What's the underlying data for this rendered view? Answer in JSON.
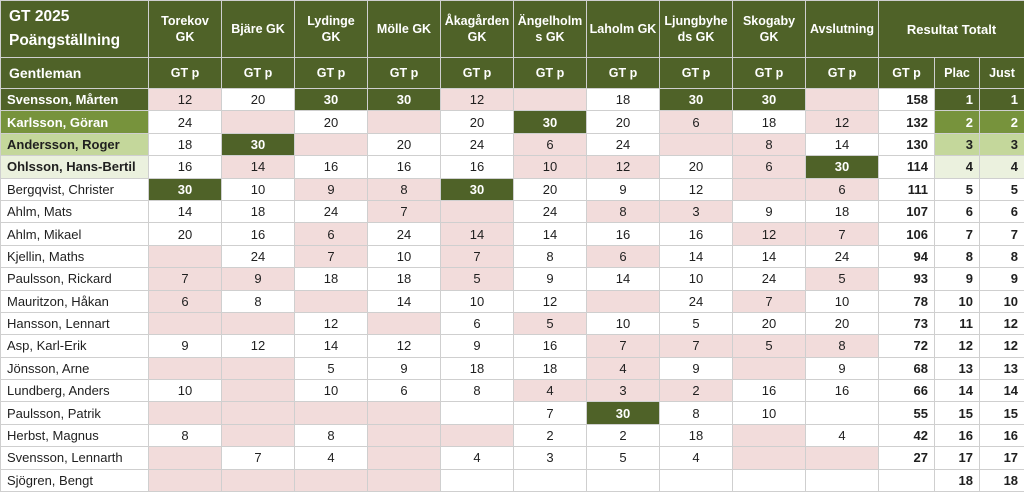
{
  "header": {
    "title_line1": "GT 2025",
    "title_line2": "Poängställning",
    "category": "Gentleman",
    "club_columns": [
      "Torekov GK",
      "Bjäre GK",
      "Lydinge GK",
      "Mölle GK",
      "Åkagården GK",
      "Ängelholms GK",
      "Laholm GK",
      "Ljungbyheds GK",
      "Skogaby GK",
      "Avslutning"
    ],
    "points_label": "GT p",
    "result_group_label": "Resultat Totalt",
    "result_columns": [
      "GT p",
      "Plac",
      "Just"
    ]
  },
  "colors": {
    "header_green": "#4f6228",
    "win_cell_green": "#4f6228",
    "rank1_green": "#4f6228",
    "rank2_green": "#77933c",
    "rank3_green": "#c4d79b",
    "rank4_green": "#ebf1de",
    "excluded_pink": "#f2dcdb",
    "grid_line": "#cfcfcf"
  },
  "cell_state_colors": {
    "n": "#ffffff",
    "x": "#f2dcdb",
    "w": "#4f6228"
  },
  "rows": [
    {
      "name": "Svensson, Mårten",
      "rank": "rank1",
      "scores": [
        [
          "12",
          "x"
        ],
        [
          "20",
          "n"
        ],
        [
          "30",
          "w"
        ],
        [
          "30",
          "w"
        ],
        [
          "12",
          "x"
        ],
        [
          "",
          "x"
        ],
        [
          "18",
          "n"
        ],
        [
          "30",
          "w"
        ],
        [
          "30",
          "w"
        ],
        [
          "",
          "x"
        ]
      ],
      "total": "158",
      "plac": "1",
      "just": "1"
    },
    {
      "name": "Karlsson, Göran",
      "rank": "rank2",
      "scores": [
        [
          "24",
          "n"
        ],
        [
          "",
          "x"
        ],
        [
          "20",
          "n"
        ],
        [
          "",
          "x"
        ],
        [
          "20",
          "n"
        ],
        [
          "30",
          "w"
        ],
        [
          "20",
          "n"
        ],
        [
          "6",
          "x"
        ],
        [
          "18",
          "n"
        ],
        [
          "12",
          "x"
        ]
      ],
      "total": "132",
      "plac": "2",
      "just": "2"
    },
    {
      "name": "Andersson, Roger",
      "rank": "rank3",
      "scores": [
        [
          "18",
          "n"
        ],
        [
          "30",
          "w"
        ],
        [
          "",
          "x"
        ],
        [
          "20",
          "n"
        ],
        [
          "24",
          "n"
        ],
        [
          "6",
          "x"
        ],
        [
          "24",
          "n"
        ],
        [
          "",
          "x"
        ],
        [
          "8",
          "x"
        ],
        [
          "14",
          "n"
        ]
      ],
      "total": "130",
      "plac": "3",
      "just": "3"
    },
    {
      "name": "Ohlsson, Hans-Bertil",
      "rank": "rank4",
      "scores": [
        [
          "16",
          "n"
        ],
        [
          "14",
          "x"
        ],
        [
          "16",
          "n"
        ],
        [
          "16",
          "n"
        ],
        [
          "16",
          "n"
        ],
        [
          "10",
          "x"
        ],
        [
          "12",
          "x"
        ],
        [
          "20",
          "n"
        ],
        [
          "6",
          "x"
        ],
        [
          "30",
          "w"
        ]
      ],
      "total": "114",
      "plac": "4",
      "just": "4"
    },
    {
      "name": "Bergqvist, Christer",
      "rank": "none",
      "scores": [
        [
          "30",
          "w"
        ],
        [
          "10",
          "n"
        ],
        [
          "9",
          "x"
        ],
        [
          "8",
          "x"
        ],
        [
          "30",
          "w"
        ],
        [
          "20",
          "n"
        ],
        [
          "9",
          "n"
        ],
        [
          "12",
          "n"
        ],
        [
          "",
          "x"
        ],
        [
          "6",
          "x"
        ]
      ],
      "total": "111",
      "plac": "5",
      "just": "5"
    },
    {
      "name": "Ahlm, Mats",
      "rank": "none",
      "scores": [
        [
          "14",
          "n"
        ],
        [
          "18",
          "n"
        ],
        [
          "24",
          "n"
        ],
        [
          "7",
          "x"
        ],
        [
          "",
          "x"
        ],
        [
          "24",
          "n"
        ],
        [
          "8",
          "x"
        ],
        [
          "3",
          "x"
        ],
        [
          "9",
          "n"
        ],
        [
          "18",
          "n"
        ]
      ],
      "total": "107",
      "plac": "6",
      "just": "6"
    },
    {
      "name": "Ahlm, Mikael",
      "rank": "none",
      "scores": [
        [
          "20",
          "n"
        ],
        [
          "16",
          "n"
        ],
        [
          "6",
          "x"
        ],
        [
          "24",
          "n"
        ],
        [
          "14",
          "x"
        ],
        [
          "14",
          "n"
        ],
        [
          "16",
          "n"
        ],
        [
          "16",
          "n"
        ],
        [
          "12",
          "x"
        ],
        [
          "7",
          "x"
        ]
      ],
      "total": "106",
      "plac": "7",
      "just": "7"
    },
    {
      "name": "Kjellin, Maths",
      "rank": "none",
      "scores": [
        [
          "",
          "x"
        ],
        [
          "24",
          "n"
        ],
        [
          "7",
          "x"
        ],
        [
          "10",
          "n"
        ],
        [
          "7",
          "x"
        ],
        [
          "8",
          "n"
        ],
        [
          "6",
          "x"
        ],
        [
          "14",
          "n"
        ],
        [
          "14",
          "n"
        ],
        [
          "24",
          "n"
        ]
      ],
      "total": "94",
      "plac": "8",
      "just": "8"
    },
    {
      "name": "Paulsson, Rickard",
      "rank": "none",
      "scores": [
        [
          "7",
          "x"
        ],
        [
          "9",
          "x"
        ],
        [
          "18",
          "n"
        ],
        [
          "18",
          "n"
        ],
        [
          "5",
          "x"
        ],
        [
          "9",
          "n"
        ],
        [
          "14",
          "n"
        ],
        [
          "10",
          "n"
        ],
        [
          "24",
          "n"
        ],
        [
          "5",
          "x"
        ]
      ],
      "total": "93",
      "plac": "9",
      "just": "9"
    },
    {
      "name": "Mauritzon, Håkan",
      "rank": "none",
      "scores": [
        [
          "6",
          "x"
        ],
        [
          "8",
          "n"
        ],
        [
          "",
          "x"
        ],
        [
          "14",
          "n"
        ],
        [
          "10",
          "n"
        ],
        [
          "12",
          "n"
        ],
        [
          "",
          "x"
        ],
        [
          "24",
          "n"
        ],
        [
          "7",
          "x"
        ],
        [
          "10",
          "n"
        ]
      ],
      "total": "78",
      "plac": "10",
      "just": "10"
    },
    {
      "name": "Hansson, Lennart",
      "rank": "none",
      "scores": [
        [
          "",
          "x"
        ],
        [
          "",
          "x"
        ],
        [
          "12",
          "n"
        ],
        [
          "",
          "x"
        ],
        [
          "6",
          "n"
        ],
        [
          "5",
          "x"
        ],
        [
          "10",
          "n"
        ],
        [
          "5",
          "n"
        ],
        [
          "20",
          "n"
        ],
        [
          "20",
          "n"
        ]
      ],
      "total": "73",
      "plac": "11",
      "just": "12"
    },
    {
      "name": "Asp, Karl-Erik",
      "rank": "none",
      "scores": [
        [
          "9",
          "n"
        ],
        [
          "12",
          "n"
        ],
        [
          "14",
          "n"
        ],
        [
          "12",
          "n"
        ],
        [
          "9",
          "n"
        ],
        [
          "16",
          "n"
        ],
        [
          "7",
          "x"
        ],
        [
          "7",
          "x"
        ],
        [
          "5",
          "x"
        ],
        [
          "8",
          "x"
        ]
      ],
      "total": "72",
      "plac": "12",
      "just": "12"
    },
    {
      "name": "Jönsson, Arne",
      "rank": "none",
      "scores": [
        [
          "",
          "x"
        ],
        [
          "",
          "x"
        ],
        [
          "5",
          "n"
        ],
        [
          "9",
          "n"
        ],
        [
          "18",
          "n"
        ],
        [
          "18",
          "n"
        ],
        [
          "4",
          "x"
        ],
        [
          "9",
          "n"
        ],
        [
          "",
          "x"
        ],
        [
          "9",
          "n"
        ]
      ],
      "total": "68",
      "plac": "13",
      "just": "13"
    },
    {
      "name": "Lundberg, Anders",
      "rank": "none",
      "scores": [
        [
          "10",
          "n"
        ],
        [
          "",
          "x"
        ],
        [
          "10",
          "n"
        ],
        [
          "6",
          "n"
        ],
        [
          "8",
          "n"
        ],
        [
          "4",
          "x"
        ],
        [
          "3",
          "x"
        ],
        [
          "2",
          "x"
        ],
        [
          "16",
          "n"
        ],
        [
          "16",
          "n"
        ]
      ],
      "total": "66",
      "plac": "14",
      "just": "14"
    },
    {
      "name": "Paulsson, Patrik",
      "rank": "none",
      "scores": [
        [
          "",
          "x"
        ],
        [
          "",
          "x"
        ],
        [
          "",
          "x"
        ],
        [
          "",
          "x"
        ],
        [
          "",
          "n"
        ],
        [
          "7",
          "n"
        ],
        [
          "30",
          "w"
        ],
        [
          "8",
          "n"
        ],
        [
          "10",
          "n"
        ],
        [
          "",
          "n"
        ]
      ],
      "total": "55",
      "plac": "15",
      "just": "15"
    },
    {
      "name": "Herbst, Magnus",
      "rank": "none",
      "scores": [
        [
          "8",
          "n"
        ],
        [
          "",
          "x"
        ],
        [
          "8",
          "n"
        ],
        [
          "",
          "x"
        ],
        [
          "",
          "x"
        ],
        [
          "2",
          "n"
        ],
        [
          "2",
          "n"
        ],
        [
          "18",
          "n"
        ],
        [
          "",
          "x"
        ],
        [
          "4",
          "n"
        ]
      ],
      "total": "42",
      "plac": "16",
      "just": "16"
    },
    {
      "name": "Svensson, Lennarth",
      "rank": "none",
      "scores": [
        [
          "",
          "x"
        ],
        [
          "7",
          "n"
        ],
        [
          "4",
          "n"
        ],
        [
          "",
          "x"
        ],
        [
          "4",
          "n"
        ],
        [
          "3",
          "n"
        ],
        [
          "5",
          "n"
        ],
        [
          "4",
          "n"
        ],
        [
          "",
          "x"
        ],
        [
          "",
          "x"
        ]
      ],
      "total": "27",
      "plac": "17",
      "just": "17"
    },
    {
      "name": "Sjögren, Bengt",
      "rank": "none",
      "scores": [
        [
          "",
          "x"
        ],
        [
          "",
          "x"
        ],
        [
          "",
          "x"
        ],
        [
          "",
          "x"
        ],
        [
          "",
          "n"
        ],
        [
          "",
          "n"
        ],
        [
          "",
          "n"
        ],
        [
          "",
          "n"
        ],
        [
          "",
          "n"
        ],
        [
          "",
          "n"
        ]
      ],
      "total": "",
      "plac": "18",
      "just": "18"
    }
  ]
}
